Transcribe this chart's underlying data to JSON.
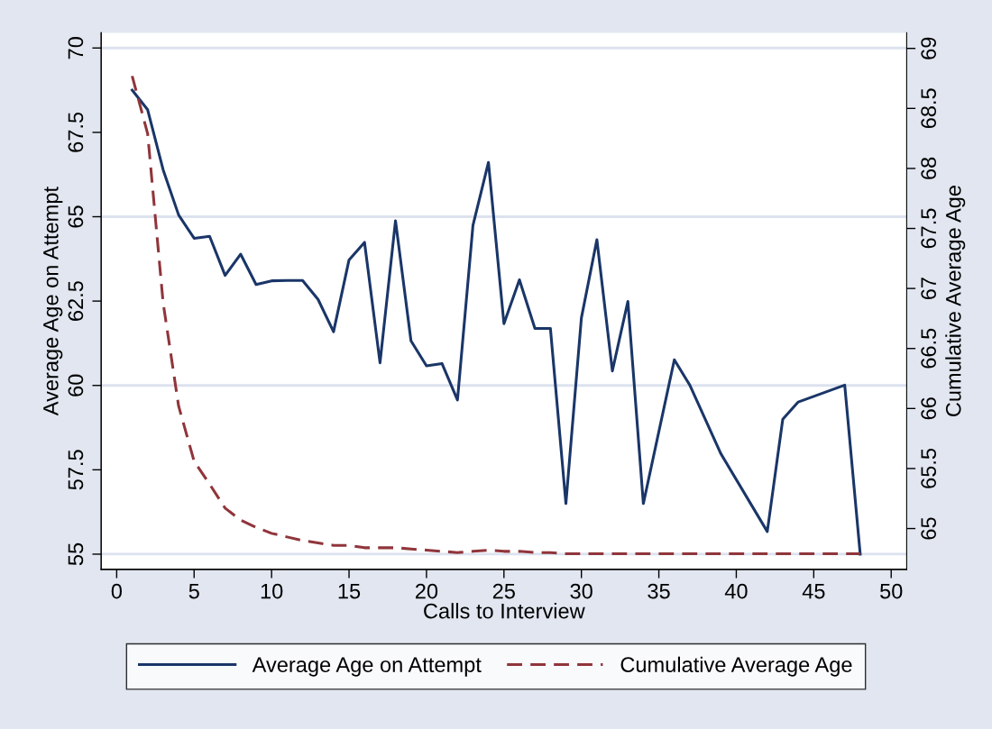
{
  "chart_data": {
    "type": "line",
    "xlabel": "Calls to Interview",
    "ylabel": "Average Age on Attempt",
    "y2label": "Cumulative Average Age",
    "xlim": [
      -1,
      51
    ],
    "xticks": [
      0,
      5,
      10,
      15,
      20,
      25,
      30,
      35,
      40,
      45,
      50
    ],
    "ylim": [
      54.55,
      70.45
    ],
    "yticks": [
      55,
      57.5,
      60,
      62.5,
      65,
      67.5,
      70
    ],
    "y2lim": [
      64.66,
      69.13
    ],
    "y2ticks": [
      65,
      65.5,
      66,
      66.5,
      67,
      67.5,
      68,
      68.5,
      69
    ],
    "grid": "y",
    "legend": "bottom",
    "series": [
      {
        "name": "Average Age on Attempt",
        "color": "#1a3668",
        "line_style": "solid",
        "x": [
          1,
          2,
          3,
          4,
          5,
          6,
          7,
          8,
          9,
          10,
          11,
          12,
          13,
          14,
          15,
          16,
          17,
          18,
          19,
          20,
          21,
          22,
          23,
          24,
          25,
          26,
          27,
          28,
          29,
          30,
          31,
          32,
          33,
          34,
          36,
          37,
          39,
          42,
          43,
          44,
          47,
          48
        ],
        "values": [
          68.75,
          68.17,
          66.39,
          65.05,
          64.36,
          64.42,
          63.26,
          63.89,
          62.99,
          63.1,
          63.11,
          63.11,
          62.55,
          61.59,
          63.72,
          64.24,
          60.67,
          64.88,
          61.32,
          60.58,
          60.65,
          59.57,
          64.74,
          66.61,
          61.83,
          63.13,
          61.69,
          61.69,
          56.5,
          62.0,
          64.32,
          60.43,
          62.49,
          56.5,
          60.76,
          60.01,
          57.98,
          55.67,
          59.0,
          59.51,
          60.01,
          55.0
        ]
      },
      {
        "name": "Cumulative Average Age",
        "color": "#90353b",
        "line_style": "dashed",
        "axis": "y2",
        "x": [
          1,
          2,
          3,
          4,
          5,
          6,
          7,
          8,
          9,
          10,
          11,
          12,
          13,
          14,
          15,
          16,
          17,
          18,
          19,
          20,
          21,
          22,
          23,
          24,
          25,
          26,
          27,
          28,
          29,
          30,
          31,
          32,
          33,
          34,
          35,
          36,
          37,
          38,
          39,
          40,
          41,
          42,
          43,
          44,
          45,
          46,
          47,
          48
        ],
        "values": [
          68.77,
          68.29,
          66.88,
          66.02,
          65.56,
          65.37,
          65.17,
          65.07,
          65.01,
          64.96,
          64.93,
          64.9,
          64.88,
          64.86,
          64.86,
          64.84,
          64.84,
          64.84,
          64.83,
          64.82,
          64.81,
          64.8,
          64.81,
          64.82,
          64.81,
          64.81,
          64.8,
          64.8,
          64.79,
          64.79,
          64.79,
          64.79,
          64.79,
          64.79,
          64.79,
          64.79,
          64.79,
          64.79,
          64.79,
          64.79,
          64.79,
          64.79,
          64.79,
          64.79,
          64.79,
          64.79,
          64.79,
          64.79
        ]
      }
    ]
  }
}
